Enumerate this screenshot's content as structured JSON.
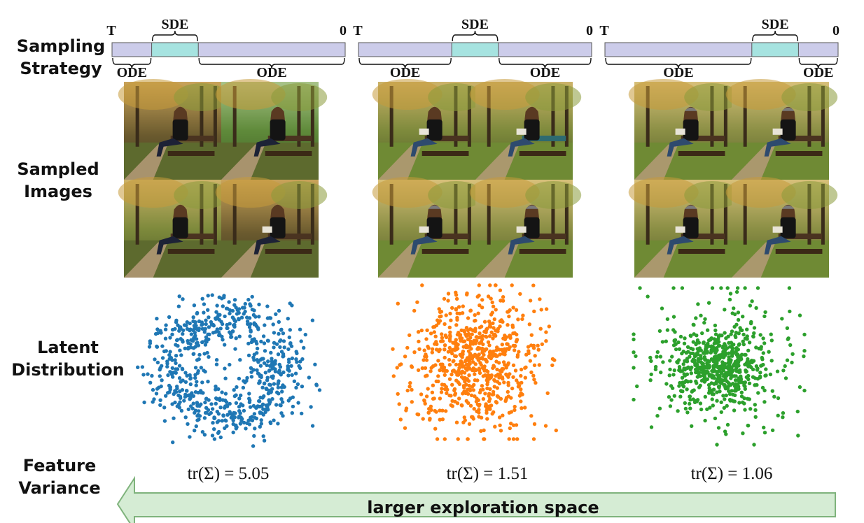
{
  "row_labels": {
    "sampling": [
      "Sampling",
      "Strategy"
    ],
    "images": [
      "Sampled",
      "Images"
    ],
    "latent": [
      "Latent",
      "Distribution"
    ],
    "variance": [
      "Feature",
      "Variance"
    ]
  },
  "timeline": {
    "start_label": "T",
    "end_label": "0",
    "sde_label": "SDE",
    "ode_label": "ODE",
    "bar_color": "#ccccea",
    "sde_color": "#a6e3e0"
  },
  "columns": [
    {
      "sde_window": [
        0.17,
        0.37
      ],
      "dot_color": "#1f77b4",
      "distribution": "ring",
      "trace": "tr(Σ) = 5.05",
      "images": [
        "woman in black jacket on park bench, autumn",
        "woman seated on green bench, trees",
        "smiling woman on bench, green lawn",
        "woman holding phone on bench"
      ]
    },
    {
      "sde_window": [
        0.4,
        0.6
      ],
      "dot_color": "#ff7f0e",
      "distribution": "disk",
      "trace": "tr(Σ) = 1.51",
      "images": [
        "woman reading on bench, autumn path",
        "woman reading on bench, autumn path",
        "woman in cap reading on bench",
        "woman in cap reading on bench"
      ]
    },
    {
      "sde_window": [
        0.63,
        0.83
      ],
      "dot_color": "#2ca02c",
      "distribution": "gaussian",
      "trace": "tr(Σ) = 1.06",
      "images": [
        "woman in cap reading on bench",
        "woman in cap reading on bench",
        "woman in cap reading on bench",
        "woman in cap reading on bench"
      ]
    }
  ],
  "arrow": {
    "label": "larger exploration space",
    "fill": "#d5ecd4",
    "stroke": "#7fb37c"
  }
}
